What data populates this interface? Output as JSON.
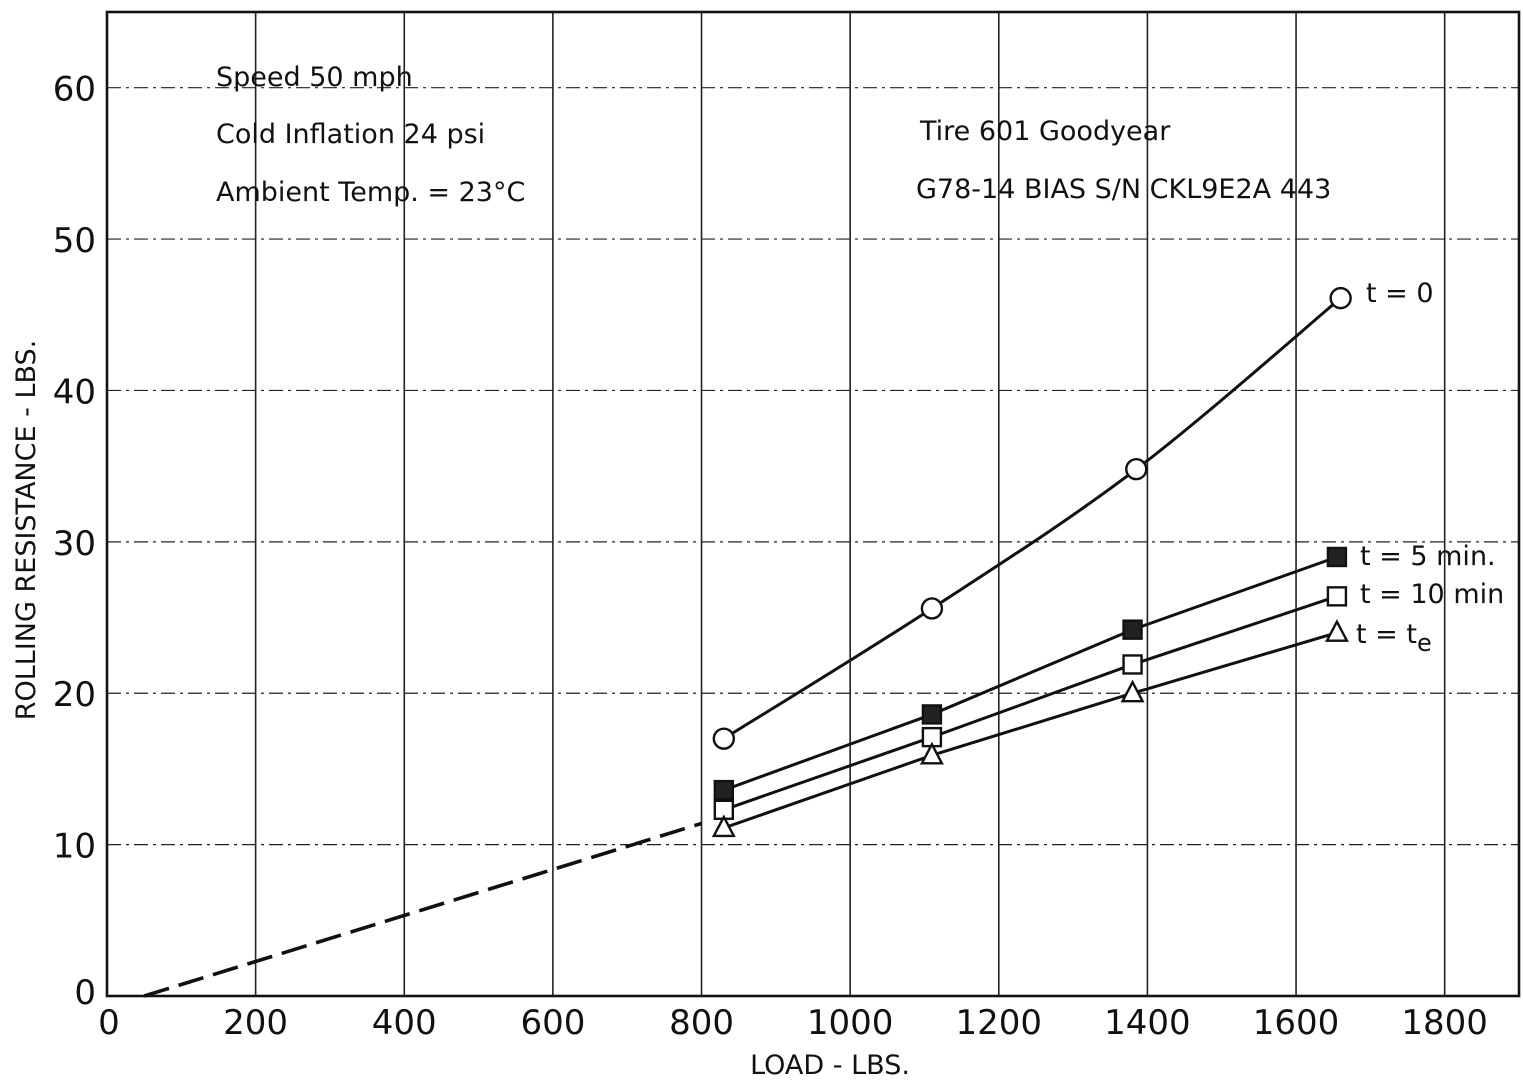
{
  "chart_data": {
    "type": "line",
    "title": "",
    "xlabel": "LOAD - LBS.",
    "ylabel": "ROLLING RESISTANCE - LBS.",
    "xlim": [
      0,
      1900
    ],
    "ylim": [
      0,
      65
    ],
    "x_ticks": [
      0,
      200,
      400,
      600,
      800,
      1000,
      1200,
      1400,
      1600,
      1800
    ],
    "y_ticks": [
      0,
      10,
      20,
      30,
      40,
      50,
      60
    ],
    "grid": true,
    "annotations_left": [
      "Speed 50 mph",
      "Cold Inflation 24 psi",
      "Ambient Temp. = 23°C"
    ],
    "annotations_right": [
      "Tire 601 Goodyear",
      "G78-14 BIAS S/N CKL9E2A 443"
    ],
    "extrapolation": {
      "style": "dashed",
      "points": [
        [
          50,
          0
        ],
        [
          800,
          11.4
        ]
      ]
    },
    "series": [
      {
        "name": "t = 0",
        "marker": "circle",
        "fill": "#ffffff",
        "points": [
          [
            830,
            17.0
          ],
          [
            1110,
            25.6
          ],
          [
            1385,
            34.8
          ],
          [
            1660,
            46.1
          ]
        ]
      },
      {
        "name": "t = 5 min.",
        "marker": "square",
        "fill": "#222222",
        "points": [
          [
            830,
            13.6
          ],
          [
            1110,
            18.6
          ],
          [
            1380,
            24.2
          ],
          [
            1655,
            29.0
          ]
        ]
      },
      {
        "name": "t = 10 min",
        "marker": "square",
        "fill": "#ffffff",
        "points": [
          [
            830,
            12.3
          ],
          [
            1110,
            17.1
          ],
          [
            1380,
            21.9
          ],
          [
            1655,
            26.4
          ]
        ]
      },
      {
        "name": "t = t",
        "subscript": "e",
        "marker": "triangle",
        "fill": "#ffffff",
        "points": [
          [
            830,
            11.1
          ],
          [
            1110,
            15.9
          ],
          [
            1380,
            20.0
          ],
          [
            1655,
            24.0
          ]
        ]
      }
    ]
  }
}
